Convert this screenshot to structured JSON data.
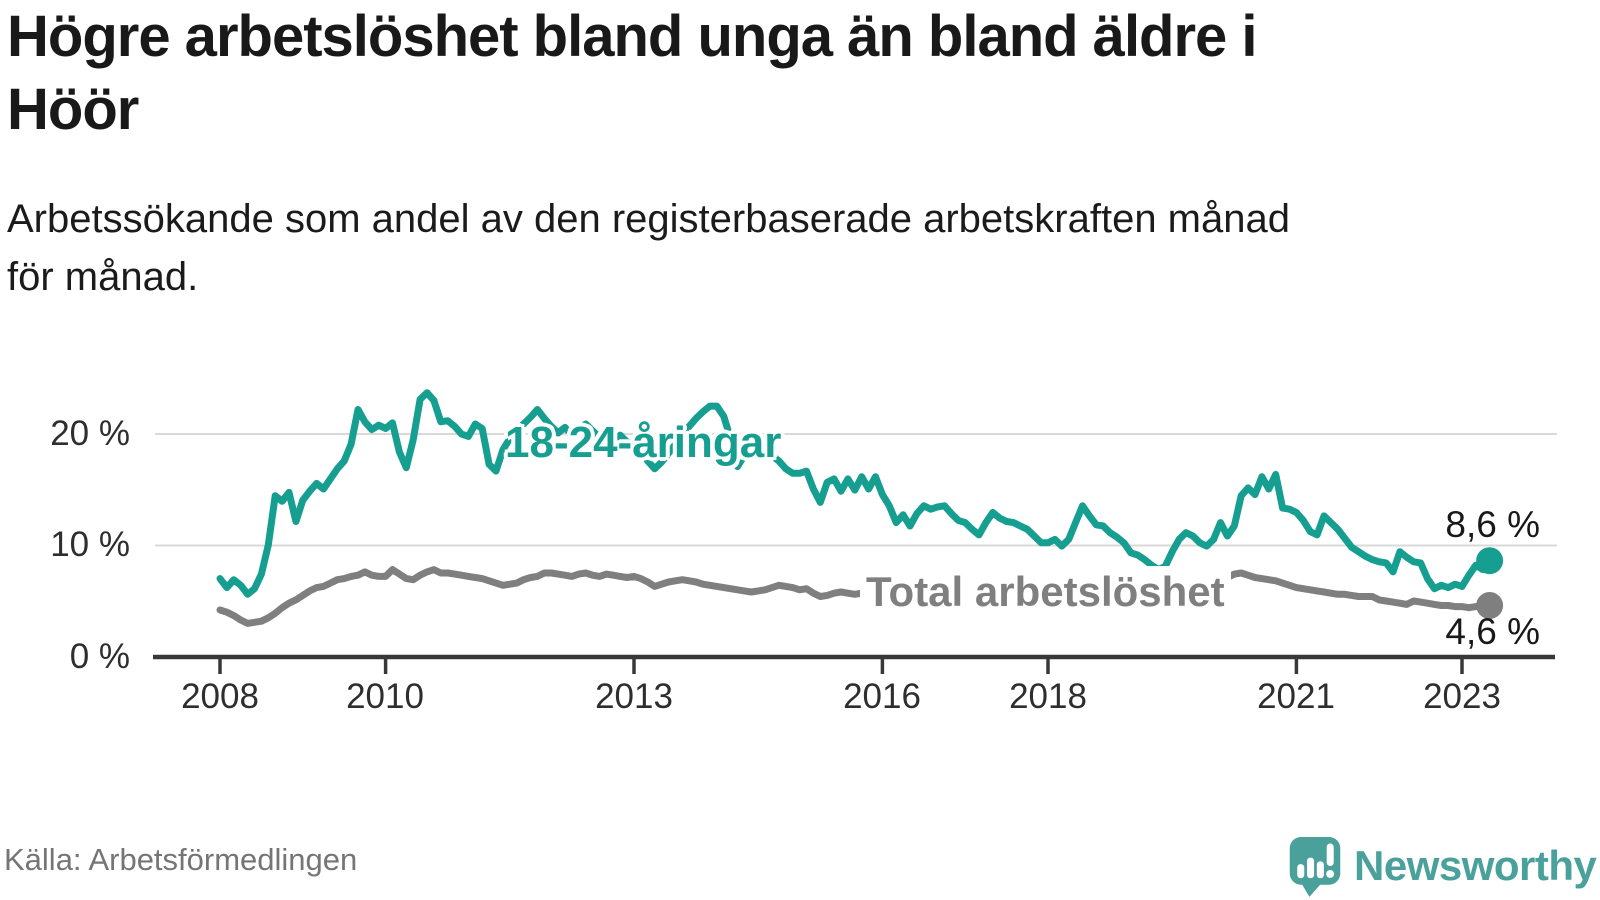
{
  "title_lines": [
    "Högre arbetslöshet bland unga än bland äldre i",
    "Höör"
  ],
  "subtitle_lines": [
    "Arbetssökande som andel av den registerbaserade arbetskraften månad",
    "för månad."
  ],
  "source": "Källa: Arbetsförmedlingen",
  "logo": {
    "text": "Newsworthy",
    "color": "#4aa19c"
  },
  "chart_data": {
    "type": "line",
    "grid": "horizontal",
    "unit": "%",
    "x_axis": {
      "start": "2008-01",
      "end": "2023-05",
      "frequency": "monthly",
      "tick_labels": [
        "2008",
        "2010",
        "2013",
        "2016",
        "2018",
        "2021",
        "2023"
      ],
      "tick_years": [
        2008,
        2010,
        2013,
        2016,
        2018,
        2021,
        2023
      ]
    },
    "y_axis": {
      "ticks": [
        {
          "label": "0 %",
          "value": 0
        },
        {
          "label": "10 %",
          "value": 10
        },
        {
          "label": "20 %",
          "value": 20
        }
      ],
      "range": [
        0,
        25
      ]
    },
    "series": [
      {
        "name": "18-24-åringar",
        "color": "#169f90",
        "end_label": "8,6 %",
        "end_value": 8.6,
        "start": "2008-01",
        "frequency": "monthly",
        "values": [
          7.0,
          6.2,
          6.9,
          6.4,
          5.6,
          6.1,
          7.4,
          10.0,
          14.4,
          13.9,
          14.7,
          12.1,
          14.0,
          14.8,
          15.5,
          15.0,
          15.9,
          16.8,
          17.5,
          19.0,
          22.1,
          21.0,
          20.3,
          20.7,
          20.4,
          20.9,
          18.3,
          16.9,
          19.4,
          23.0,
          23.6,
          22.9,
          21.0,
          21.1,
          20.6,
          19.9,
          19.7,
          20.8,
          20.4,
          17.2,
          16.6,
          18.5,
          19.5,
          20.3,
          20.8,
          21.4,
          22.1,
          21.3,
          20.6,
          20.0,
          20.5,
          19.8,
          20.3,
          20.8,
          20.2,
          19.6,
          20.0,
          19.4,
          19.8,
          19.2,
          19.0,
          18.3,
          17.5,
          16.8,
          17.4,
          18.2,
          19.0,
          19.8,
          20.6,
          21.3,
          21.9,
          22.4,
          22.4,
          21.5,
          19.5,
          17.0,
          18.0,
          18.6,
          18.2,
          18.5,
          18.0,
          17.5,
          16.8,
          16.4,
          16.4,
          16.6,
          15.0,
          13.8,
          15.6,
          15.9,
          14.8,
          15.9,
          14.9,
          16.1,
          15.0,
          16.1,
          14.5,
          13.5,
          12.0,
          12.7,
          11.7,
          12.8,
          13.5,
          13.2,
          13.4,
          13.5,
          12.8,
          12.2,
          12.0,
          11.4,
          10.9,
          12.0,
          12.9,
          12.4,
          12.1,
          12.0,
          11.7,
          11.4,
          10.8,
          10.2,
          10.2,
          10.5,
          9.9,
          10.5,
          12.0,
          13.5,
          12.6,
          11.8,
          11.7,
          11.1,
          10.7,
          10.2,
          9.3,
          9.1,
          8.7,
          8.2,
          7.8,
          8.1,
          9.4,
          10.5,
          11.1,
          10.8,
          10.2,
          9.9,
          10.5,
          12.0,
          10.8,
          11.7,
          14.4,
          15.1,
          14.5,
          16.1,
          15.0,
          16.3,
          13.3,
          13.2,
          12.9,
          12.2,
          11.2,
          10.9,
          12.6,
          12.0,
          11.4,
          10.6,
          9.8,
          9.4,
          9.0,
          8.7,
          8.5,
          8.4,
          7.6,
          9.4,
          8.9,
          8.5,
          8.4,
          7.0,
          6.1,
          6.4,
          6.2,
          6.5,
          6.3,
          7.3,
          8.2,
          7.8,
          8.6
        ]
      },
      {
        "name": "Total arbetslöshet",
        "color": "#7f7f7f",
        "end_label": "4,6 %",
        "end_value": 4.6,
        "start": "2008-01",
        "frequency": "monthly",
        "values": [
          4.2,
          4.0,
          3.7,
          3.3,
          3.0,
          3.1,
          3.2,
          3.5,
          3.9,
          4.4,
          4.8,
          5.1,
          5.5,
          5.9,
          6.2,
          6.3,
          6.6,
          6.9,
          7.0,
          7.2,
          7.3,
          7.6,
          7.3,
          7.2,
          7.2,
          7.8,
          7.4,
          7.0,
          6.9,
          7.3,
          7.6,
          7.8,
          7.5,
          7.5,
          7.4,
          7.3,
          7.2,
          7.1,
          7.0,
          6.8,
          6.6,
          6.4,
          6.5,
          6.6,
          6.9,
          7.1,
          7.2,
          7.5,
          7.5,
          7.4,
          7.3,
          7.2,
          7.4,
          7.5,
          7.3,
          7.2,
          7.4,
          7.3,
          7.2,
          7.1,
          7.2,
          7.0,
          6.7,
          6.3,
          6.5,
          6.7,
          6.8,
          6.9,
          6.8,
          6.7,
          6.5,
          6.4,
          6.3,
          6.2,
          6.1,
          6.0,
          5.9,
          5.8,
          5.9,
          6.0,
          6.2,
          6.4,
          6.3,
          6.2,
          6.0,
          6.1,
          5.7,
          5.4,
          5.5,
          5.7,
          5.8,
          5.7,
          5.6,
          5.7,
          5.8,
          5.9,
          6.0,
          6.1,
          6.0,
          5.9,
          6.0,
          6.1,
          6.2,
          6.1,
          6.0,
          6.1,
          6.0,
          6.0,
          5.9,
          6.0,
          5.9,
          5.8,
          5.9,
          6.0,
          5.9,
          5.8,
          5.8,
          5.7,
          5.7,
          5.6,
          5.6,
          5.7,
          5.6,
          5.5,
          5.6,
          5.7,
          5.6,
          5.5,
          5.5,
          5.4,
          5.5,
          5.4,
          5.5,
          5.6,
          5.7,
          5.8,
          5.9,
          6.0,
          6.2,
          6.3,
          6.4,
          6.5,
          6.6,
          6.7,
          6.8,
          6.9,
          7.1,
          7.4,
          7.5,
          7.3,
          7.1,
          7.0,
          6.9,
          6.8,
          6.6,
          6.4,
          6.2,
          6.1,
          6.0,
          5.9,
          5.8,
          5.7,
          5.6,
          5.6,
          5.5,
          5.4,
          5.4,
          5.4,
          5.1,
          5.0,
          4.9,
          4.8,
          4.7,
          5.0,
          4.9,
          4.8,
          4.7,
          4.6,
          4.6,
          4.5,
          4.5,
          4.4,
          4.5,
          4.5,
          4.6
        ]
      }
    ]
  }
}
